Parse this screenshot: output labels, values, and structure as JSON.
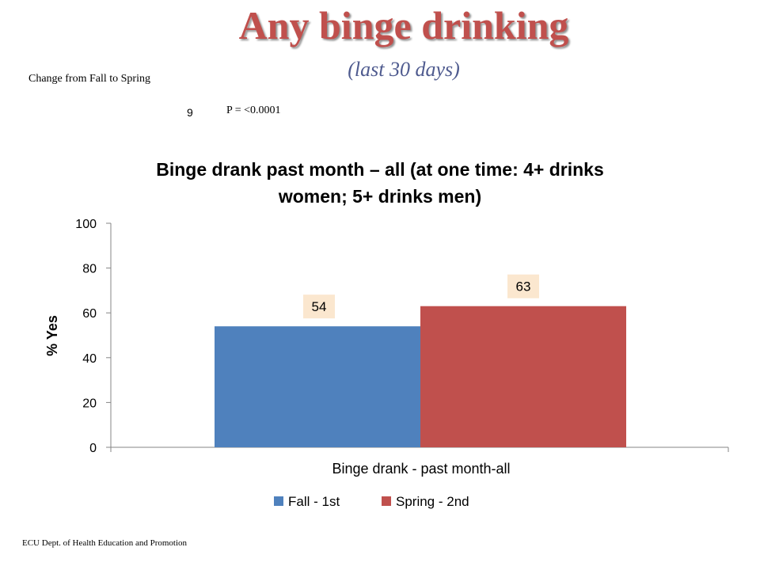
{
  "slide": {
    "title": "Any binge drinking",
    "subtitle": "(last 30 days)",
    "change_label": "Change  from Fall to Spring",
    "check_glyph": "9",
    "p_value": "P = <0.0001",
    "footer": "ECU Dept. of Health Education and Promotion"
  },
  "colors": {
    "title": "#c0504d",
    "subtitle": "#4f5b8f",
    "fall": "#4f81bd",
    "spring": "#c0504d",
    "data_label_bg": "#fbe7cf"
  },
  "chart_data": {
    "type": "bar",
    "title": "Binge drank past month – all (at one time: 4+ drinks women; 5+ drinks men)",
    "title_lines": [
      "Binge drank past month – all (at one time: 4+ drinks",
      "women; 5+ drinks men)"
    ],
    "categories": [
      "Binge drank - past month-all"
    ],
    "series": [
      {
        "name": "Fall - 1st",
        "values": [
          54
        ],
        "color": "#4f81bd"
      },
      {
        "name": "Spring - 2nd",
        "values": [
          63
        ],
        "color": "#c0504d"
      }
    ],
    "data_labels": [
      "54",
      "63"
    ],
    "xlabel": "",
    "ylabel": "% Yes",
    "ylim": [
      0,
      100
    ],
    "yticks": [
      0,
      20,
      40,
      60,
      80,
      100
    ],
    "grid": false,
    "legend": "bottom"
  }
}
